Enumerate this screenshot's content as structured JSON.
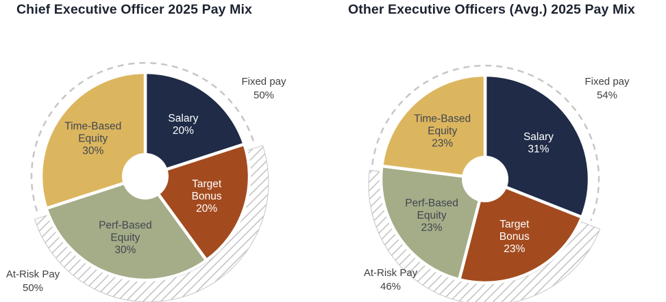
{
  "theme": {
    "title_color": "#1c2330",
    "annotation_color": "#3f3f3f",
    "ring_color": "#c6c6c6",
    "hatch_color": "#c0c0c0",
    "slice_gap_color": "#ffffff"
  },
  "chart_data": [
    {
      "type": "pie",
      "title": "Chief Executive Officer 2025 Pay Mix",
      "unit": "%",
      "direction": "clockwise",
      "start_angle_deg": 0,
      "donut": true,
      "slices": [
        {
          "label": "Salary",
          "value": 20,
          "color": "#1f2b47",
          "text_color": "#ffffff"
        },
        {
          "label": "Target Bonus",
          "value": 20,
          "color": "#a34b1f",
          "text_color": "#ffffff"
        },
        {
          "label": "Perf-Based Equity",
          "value": 30,
          "color": "#a4ad88",
          "text_color": "#41464e"
        },
        {
          "label": "Time-Based Equity",
          "value": 30,
          "color": "#dcb65f",
          "text_color": "#41464e"
        }
      ],
      "annotations": [
        {
          "label": "Fixed pay",
          "value": "50%",
          "covers": [
            "Time-Based Equity",
            "Salary"
          ],
          "ring_style": "dashed",
          "position": "top-right"
        },
        {
          "label": "At-Risk Pay",
          "value": "50%",
          "covers": [
            "Target Bonus",
            "Perf-Based Equity"
          ],
          "ring_style": "hatched",
          "position": "bottom-left"
        }
      ]
    },
    {
      "type": "pie",
      "title": "Other Executive Officers (Avg.) 2025 Pay Mix",
      "unit": "%",
      "direction": "clockwise",
      "start_angle_deg": 0,
      "donut": true,
      "slices": [
        {
          "label": "Salary",
          "value": 31,
          "color": "#1f2b47",
          "text_color": "#ffffff"
        },
        {
          "label": "Target Bonus",
          "value": 23,
          "color": "#a34b1f",
          "text_color": "#ffffff"
        },
        {
          "label": "Perf-Based Equity",
          "value": 23,
          "color": "#a4ad88",
          "text_color": "#41464e"
        },
        {
          "label": "Time-Based Equity",
          "value": 23,
          "color": "#dcb65f",
          "text_color": "#41464e"
        }
      ],
      "annotations": [
        {
          "label": "Fixed pay",
          "value": "54%",
          "covers": [
            "Time-Based Equity",
            "Salary"
          ],
          "ring_style": "dashed",
          "position": "top-right"
        },
        {
          "label": "At-Risk Pay",
          "value": "46%",
          "covers": [
            "Target Bonus",
            "Perf-Based Equity"
          ],
          "ring_style": "hatched",
          "position": "bottom-left"
        }
      ]
    }
  ]
}
